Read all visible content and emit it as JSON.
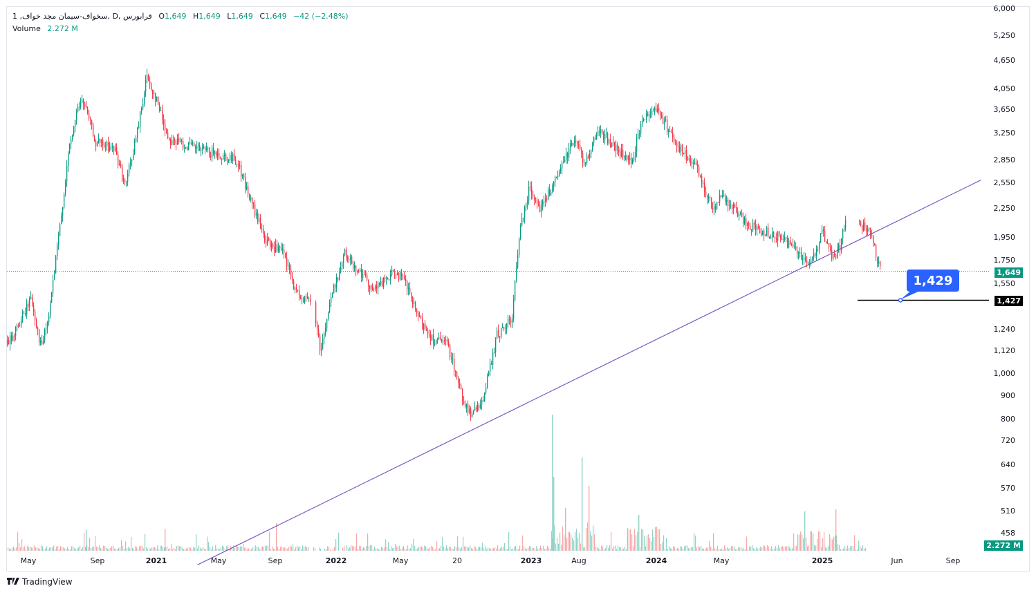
{
  "legend": {
    "symbol": "1 ,سخواف-سیمان مجد خواف, D, فرابورس",
    "o_label": "O",
    "o_value": "1,649",
    "h_label": "H",
    "h_value": "1,649",
    "l_label": "L",
    "l_value": "1,649",
    "c_label": "C",
    "c_value": "1,649",
    "change": "−42 (−2.48%)",
    "volume_label": "Volume",
    "volume_value": "2.272 M"
  },
  "price_axis": [
    "6,000",
    "5,250",
    "4,650",
    "4,050",
    "3,650",
    "3,250",
    "2,850",
    "2,550",
    "2,250",
    "1,950",
    "1,750",
    "1,550",
    "1,240",
    "1,120",
    "1,000",
    "900",
    "800",
    "720",
    "640",
    "570",
    "510",
    "458"
  ],
  "time_axis": [
    {
      "label": "May",
      "bold": false
    },
    {
      "label": "Sep",
      "bold": false
    },
    {
      "label": "2021",
      "bold": true
    },
    {
      "label": "May",
      "bold": false
    },
    {
      "label": "Sep",
      "bold": false
    },
    {
      "label": "2022",
      "bold": true
    },
    {
      "label": "May",
      "bold": false
    },
    {
      "label": "20",
      "bold": false
    },
    {
      "label": "2023",
      "bold": true
    },
    {
      "label": "Aug",
      "bold": false
    },
    {
      "label": "2024",
      "bold": true
    },
    {
      "label": "May",
      "bold": false
    },
    {
      "label": "2025",
      "bold": true
    },
    {
      "label": "Jun",
      "bold": false
    },
    {
      "label": "Sep",
      "bold": false
    }
  ],
  "badges": {
    "last_price": "1,649",
    "level_price": "1,427",
    "volume": "2.272 M",
    "callout": "1,429"
  },
  "colors": {
    "up": "#089981",
    "down": "#f23645",
    "trendline": "#7e57c2",
    "level_line": "#000000",
    "callout": "#2962ff",
    "volume_up": "#8fd3c6",
    "volume_down": "#f7a9a9"
  },
  "chart_data": {
    "type": "candlestick",
    "log_scale": true,
    "x_range": [
      "2020-04",
      "2025-10"
    ],
    "price_path": [
      {
        "x": "2020-04-01",
        "y": 1150
      },
      {
        "x": "2020-05-01",
        "y": 1300
      },
      {
        "x": "2020-05-20",
        "y": 1450
      },
      {
        "x": "2020-06-10",
        "y": 1130
      },
      {
        "x": "2020-06-25",
        "y": 1300
      },
      {
        "x": "2020-07-15",
        "y": 1900
      },
      {
        "x": "2020-08-05",
        "y": 2900
      },
      {
        "x": "2020-08-25",
        "y": 3700
      },
      {
        "x": "2020-09-05",
        "y": 3800
      },
      {
        "x": "2020-10-01",
        "y": 3100
      },
      {
        "x": "2020-11-10",
        "y": 3000
      },
      {
        "x": "2020-12-01",
        "y": 2500
      },
      {
        "x": "2020-12-25",
        "y": 3200
      },
      {
        "x": "2021-01-15",
        "y": 4300
      },
      {
        "x": "2021-02-05",
        "y": 3800
      },
      {
        "x": "2021-03-01",
        "y": 3150
      },
      {
        "x": "2021-05-01",
        "y": 3000
      },
      {
        "x": "2021-07-20",
        "y": 2850
      },
      {
        "x": "2021-08-20",
        "y": 2300
      },
      {
        "x": "2021-09-20",
        "y": 1900
      },
      {
        "x": "2021-10-25",
        "y": 1800
      },
      {
        "x": "2021-11-20",
        "y": 1480
      },
      {
        "x": "2021-12-25",
        "y": 1400
      },
      {
        "x": "2022-01-10",
        "y": 1120
      },
      {
        "x": "2022-02-01",
        "y": 1450
      },
      {
        "x": "2022-03-01",
        "y": 1800
      },
      {
        "x": "2022-04-01",
        "y": 1650
      },
      {
        "x": "2022-05-01",
        "y": 1500
      },
      {
        "x": "2022-06-15",
        "y": 1650
      },
      {
        "x": "2022-07-05",
        "y": 1550
      },
      {
        "x": "2022-08-01",
        "y": 1300
      },
      {
        "x": "2022-09-01",
        "y": 1180
      },
      {
        "x": "2022-10-01",
        "y": 1150
      },
      {
        "x": "2022-11-01",
        "y": 880
      },
      {
        "x": "2022-11-20",
        "y": 810
      },
      {
        "x": "2022-12-15",
        "y": 900
      },
      {
        "x": "2023-01-10",
        "y": 1200
      },
      {
        "x": "2023-02-10",
        "y": 1300
      },
      {
        "x": "2023-03-01",
        "y": 2100
      },
      {
        "x": "2023-03-20",
        "y": 2500
      },
      {
        "x": "2023-04-10",
        "y": 2250
      },
      {
        "x": "2023-05-15",
        "y": 2600
      },
      {
        "x": "2023-06-20",
        "y": 3200
      },
      {
        "x": "2023-07-10",
        "y": 2800
      },
      {
        "x": "2023-08-10",
        "y": 3300
      },
      {
        "x": "2023-09-15",
        "y": 3000
      },
      {
        "x": "2023-10-15",
        "y": 2800
      },
      {
        "x": "2023-11-10",
        "y": 3500
      },
      {
        "x": "2023-12-05",
        "y": 3700
      },
      {
        "x": "2023-12-25",
        "y": 3400
      },
      {
        "x": "2024-01-25",
        "y": 3000
      },
      {
        "x": "2024-03-01",
        "y": 2700
      },
      {
        "x": "2024-04-01",
        "y": 2250
      },
      {
        "x": "2024-04-20",
        "y": 2400
      },
      {
        "x": "2024-05-20",
        "y": 2200
      },
      {
        "x": "2024-06-20",
        "y": 2050
      },
      {
        "x": "2024-07-20",
        "y": 2000
      },
      {
        "x": "2024-08-20",
        "y": 1950
      },
      {
        "x": "2024-09-20",
        "y": 1850
      },
      {
        "x": "2024-10-20",
        "y": 1700
      },
      {
        "x": "2024-11-15",
        "y": 2000
      },
      {
        "x": "2024-12-05",
        "y": 1750
      },
      {
        "x": "2024-12-20",
        "y": 1850
      },
      {
        "x": "2025-01-10",
        "y": 2300
      },
      {
        "x": "2025-01-25",
        "y": 2100
      },
      {
        "x": "2025-02-20",
        "y": 2000
      },
      {
        "x": "2025-03-05",
        "y": 1800
      },
      {
        "x": "2025-03-15",
        "y": 1649
      }
    ],
    "volume_spikes": [
      {
        "x": "2023-03-01",
        "y": 0.28
      },
      {
        "x": "2023-04-20",
        "y": 0.19
      },
      {
        "x": "2024-12-10",
        "y": 0.09
      },
      {
        "x": "2025-01-15",
        "y": 0.092
      },
      {
        "x": "2023-12-10",
        "y": 0.085
      }
    ],
    "trendline": [
      {
        "x": "2021-05-01",
        "y": 392
      },
      {
        "x": "2025-10-10",
        "y": 2580
      }
    ],
    "level_line": {
      "x_start": "2025-03-01",
      "x_end": "2025-10-31",
      "y": 1427
    },
    "last_price": 1649,
    "y_ticks": [
      6000,
      5250,
      4650,
      4050,
      3650,
      3250,
      2850,
      2550,
      2250,
      1950,
      1750,
      1550,
      1240,
      1120,
      1000,
      900,
      800,
      720,
      640,
      570,
      510,
      458
    ]
  }
}
